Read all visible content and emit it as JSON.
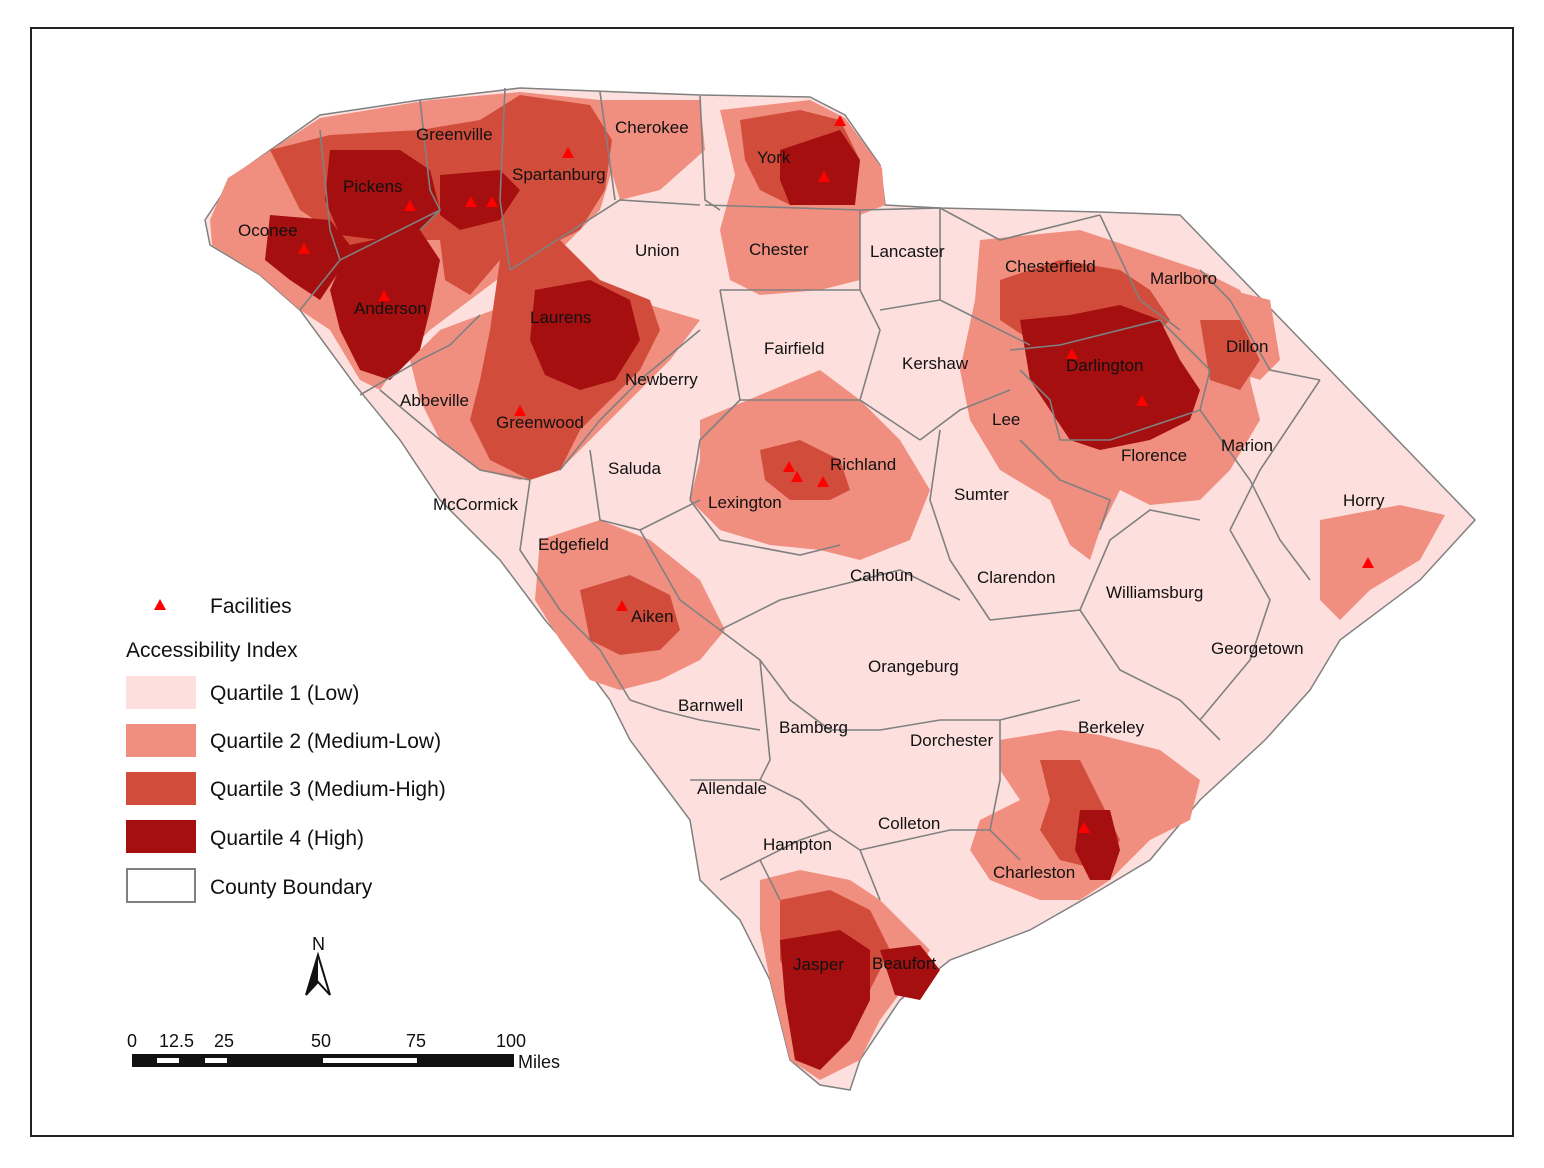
{
  "legend": {
    "facilities_label": "Facilities",
    "title": "Accessibility Index",
    "classes": [
      {
        "label": "Quartile 1 (Low)",
        "color": "#fde0de"
      },
      {
        "label": "Quartile 2 (Medium-Low)",
        "color": "#f08f80"
      },
      {
        "label": "Quartile 3 (Medium-High)",
        "color": "#d24c3c"
      },
      {
        "label": "Quartile 4 (High)",
        "color": "#a50f0f"
      }
    ],
    "boundary_label": "County Boundary"
  },
  "colors": {
    "facility": "#ff0000",
    "boundary": "#808080"
  },
  "north_arrow": {
    "label": "N"
  },
  "scale_bar": {
    "ticks": [
      "0",
      "12.5",
      "25",
      "50",
      "75",
      "100"
    ],
    "unit": "Miles"
  },
  "counties": [
    {
      "name": "Greenville"
    },
    {
      "name": "Cherokee"
    },
    {
      "name": "York"
    },
    {
      "name": "Pickens"
    },
    {
      "name": "Spartanburg"
    },
    {
      "name": "Oconee"
    },
    {
      "name": "Union"
    },
    {
      "name": "Chester"
    },
    {
      "name": "Lancaster"
    },
    {
      "name": "Chesterfield"
    },
    {
      "name": "Marlboro"
    },
    {
      "name": "Anderson"
    },
    {
      "name": "Laurens"
    },
    {
      "name": "Fairfield"
    },
    {
      "name": "Kershaw"
    },
    {
      "name": "Darlington"
    },
    {
      "name": "Dillon"
    },
    {
      "name": "Newberry"
    },
    {
      "name": "Abbeville"
    },
    {
      "name": "Lee"
    },
    {
      "name": "Greenwood"
    },
    {
      "name": "Richland"
    },
    {
      "name": "Marion"
    },
    {
      "name": "Florence"
    },
    {
      "name": "Saluda"
    },
    {
      "name": "Sumter"
    },
    {
      "name": "Lexington"
    },
    {
      "name": "McCormick"
    },
    {
      "name": "Horry"
    },
    {
      "name": "Edgefield"
    },
    {
      "name": "Calhoun"
    },
    {
      "name": "Clarendon"
    },
    {
      "name": "Williamsburg"
    },
    {
      "name": "Aiken"
    },
    {
      "name": "Georgetown"
    },
    {
      "name": "Orangeburg"
    },
    {
      "name": "Barnwell"
    },
    {
      "name": "Bamberg"
    },
    {
      "name": "Dorchester"
    },
    {
      "name": "Berkeley"
    },
    {
      "name": "Allendale"
    },
    {
      "name": "Colleton"
    },
    {
      "name": "Hampton"
    },
    {
      "name": "Charleston"
    },
    {
      "name": "Jasper"
    },
    {
      "name": "Beaufort"
    }
  ]
}
